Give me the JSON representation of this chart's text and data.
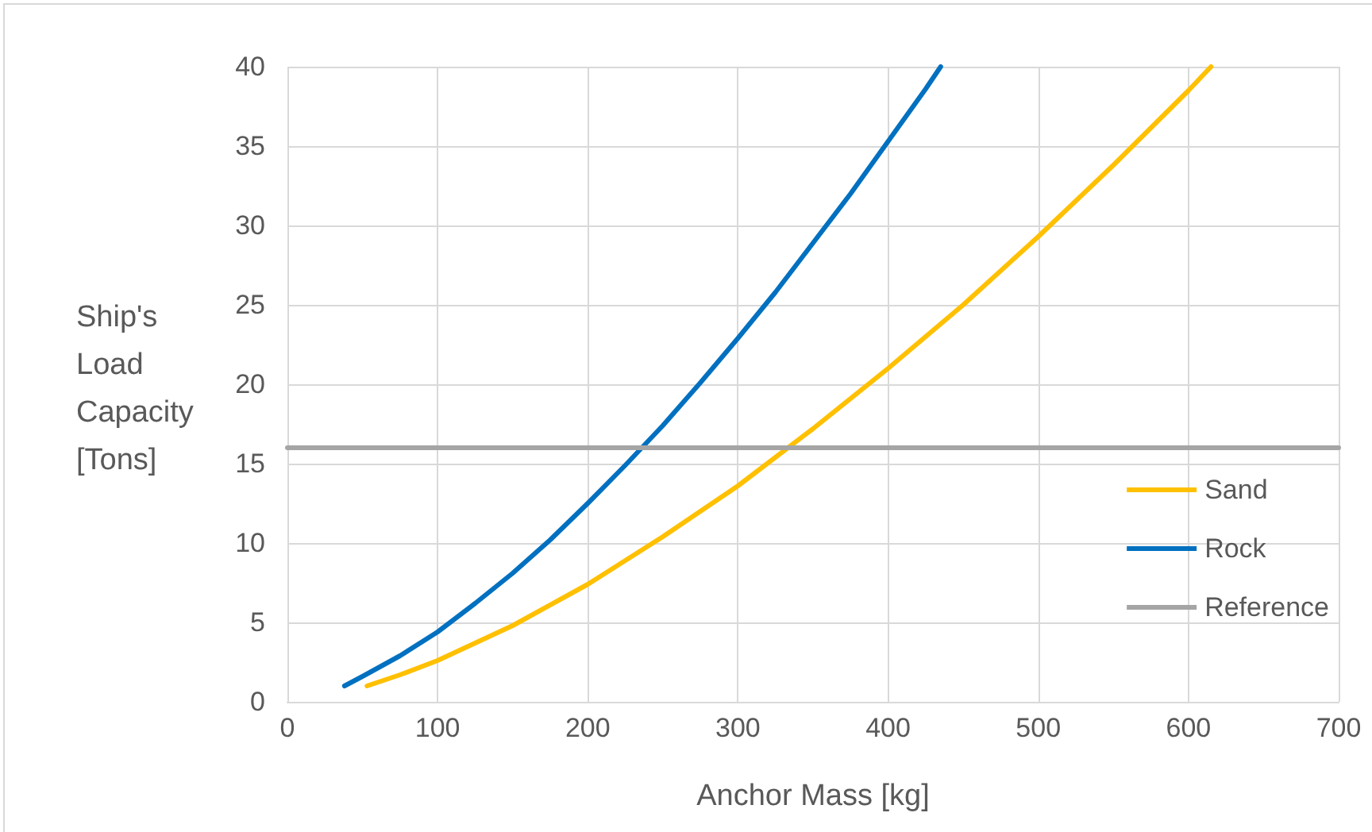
{
  "chart_data": {
    "type": "line",
    "xlabel": "Anchor Mass [kg]",
    "ylabel": "Ship's Load Capacity [Tons]",
    "xlim": [
      0,
      700
    ],
    "xticks": [
      0,
      100,
      200,
      300,
      400,
      500,
      600,
      700
    ],
    "ylim": [
      0,
      40
    ],
    "yticks": [
      0,
      5,
      10,
      15,
      20,
      25,
      30,
      35,
      40
    ],
    "grid": true,
    "legend": "right",
    "marker": "none",
    "line_style": "solid",
    "series": [
      {
        "name": "Sand",
        "color": "#ffc000",
        "x": [
          53,
          75,
          100,
          150,
          200,
          250,
          300,
          350,
          400,
          450,
          500,
          550,
          600,
          615
        ],
        "values": [
          1.0,
          1.7,
          2.6,
          4.8,
          7.4,
          10.4,
          13.6,
          17.2,
          21.0,
          25.0,
          29.3,
          33.8,
          38.5,
          40.0
        ]
      },
      {
        "name": "Rock",
        "color": "#0070c0",
        "x": [
          38,
          50,
          75,
          100,
          125,
          150,
          175,
          200,
          225,
          250,
          275,
          300,
          325,
          350,
          375,
          400,
          425,
          435
        ],
        "values": [
          1.0,
          1.6,
          2.9,
          4.4,
          6.2,
          8.1,
          10.2,
          12.5,
          14.9,
          17.4,
          20.1,
          22.9,
          25.8,
          28.9,
          32.0,
          35.3,
          38.6,
          40.0
        ]
      },
      {
        "name": "Reference",
        "color": "#a5a5a5",
        "x": [
          0,
          700
        ],
        "values": [
          16,
          16
        ]
      }
    ]
  }
}
